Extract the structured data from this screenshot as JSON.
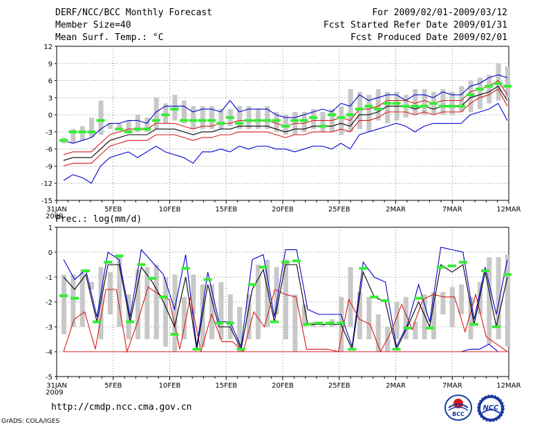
{
  "header": {
    "title": "DERF/NCC/BCC Monthly Forecast",
    "member_size": "Member Size=40",
    "variable": "Mean Surf. Temp.: °C",
    "period": "For 2009/02/01-2009/03/12",
    "fcst_started": "Fcst Started Refer Date 2009/01/31",
    "fcst_produced": "Fcst Produced Date 2009/02/01"
  },
  "footer": {
    "url": "http://cmdp.ncc.cma.gov.cn",
    "grads": "GrADS: COLA/IGES",
    "logo_left_text": "BCC",
    "logo_right_text": "NCC"
  },
  "colors": {
    "box": "#c8c8c8",
    "mean": "#000000",
    "inner": "#d81818",
    "outer": "#0000d0",
    "obs": "#33ee33",
    "grid": "#808080"
  },
  "chart_data": [
    {
      "type": "line",
      "title": "Mean Surf. Temp.: °C",
      "ylim": [
        -15,
        12
      ],
      "yticks": [
        "12",
        "9",
        "6",
        "3",
        "0",
        "-3",
        "-6",
        "-9",
        "-12",
        "-15"
      ],
      "xlabels": [
        "31JAN",
        "5FEB",
        "10FEB",
        "15FEB",
        "20FEB",
        "25FEB",
        "2MAR",
        "7MAR",
        "12MAR"
      ],
      "xlabel_year": "2009",
      "series": [
        {
          "name": "box_low",
          "values": [
            -5.0,
            -5.0,
            -4.5,
            -4.0,
            -3.5,
            -2.5,
            -2.5,
            -2.8,
            -3.0,
            -3.0,
            -2.5,
            -1.5,
            -1.0,
            -1.5,
            -2.5,
            -2.5,
            -2.5,
            -2.5,
            -2.0,
            -2.5,
            -2.5,
            -2.5,
            -2.5,
            -3.0,
            -3.5,
            -3.5,
            -3.0,
            -2.5,
            -3.0,
            -3.0,
            -3.5,
            -3.0,
            -2.5,
            -3.0,
            -1.0,
            -1.5,
            -1.0,
            -0.5,
            0.0,
            0.0,
            0.0,
            0.0,
            0.0,
            0.5,
            0.5,
            1.0,
            2.0,
            2.5,
            3.0
          ]
        },
        {
          "name": "box_high",
          "values": [
            -4.0,
            -2.5,
            -2.0,
            -0.5,
            2.5,
            -1.5,
            -1.5,
            -1.0,
            0.0,
            -0.5,
            3.0,
            2.0,
            3.5,
            2.5,
            1.5,
            1.5,
            1.5,
            1.0,
            1.0,
            1.5,
            1.5,
            1.0,
            1.5,
            0.5,
            0.0,
            0.5,
            0.5,
            1.0,
            0.5,
            1.0,
            1.5,
            4.5,
            4.0,
            3.5,
            4.5,
            4.0,
            4.0,
            3.5,
            4.5,
            4.5,
            4.0,
            4.5,
            4.0,
            5.0,
            6.0,
            6.5,
            7.0,
            9.0,
            8.5
          ]
        },
        {
          "name": "outer_low",
          "values": [
            -11.5,
            -10.5,
            -11.0,
            -12.0,
            -9.0,
            -7.5,
            -7.0,
            -6.5,
            -7.5,
            -6.5,
            -5.5,
            -6.5,
            -7.0,
            -7.5,
            -8.5,
            -6.5,
            -6.5,
            -6.0,
            -6.5,
            -5.5,
            -6.0,
            -5.5,
            -5.5,
            -6.0,
            -6.0,
            -6.5,
            -6.0,
            -5.5,
            -5.5,
            -6.0,
            -5.0,
            -6.0,
            -3.5,
            -3.0,
            -2.5,
            -2.0,
            -1.5,
            -2.0,
            -3.0,
            -2.0,
            -1.5,
            -1.5,
            -1.5,
            -1.5,
            0.0,
            0.5,
            1.0,
            2.0,
            -1.0
          ]
        },
        {
          "name": "inner_low",
          "values": [
            -9.0,
            -8.5,
            -8.5,
            -8.5,
            -7.0,
            -5.5,
            -5.0,
            -4.5,
            -4.5,
            -4.5,
            -3.5,
            -3.5,
            -3.5,
            -4.0,
            -4.5,
            -4.0,
            -4.0,
            -3.5,
            -3.5,
            -3.0,
            -3.0,
            -3.0,
            -3.0,
            -3.5,
            -4.0,
            -3.5,
            -3.5,
            -3.0,
            -3.0,
            -3.0,
            -2.5,
            -3.0,
            -1.0,
            -1.0,
            -0.5,
            0.5,
            0.5,
            0.5,
            0.0,
            0.5,
            0.0,
            0.5,
            0.5,
            0.5,
            2.0,
            3.0,
            3.5,
            4.5,
            1.5
          ]
        },
        {
          "name": "mean",
          "values": [
            -8.0,
            -7.5,
            -7.5,
            -7.5,
            -6.0,
            -4.5,
            -4.0,
            -3.5,
            -3.5,
            -3.5,
            -2.5,
            -2.5,
            -2.5,
            -3.0,
            -3.5,
            -3.0,
            -3.0,
            -2.5,
            -2.5,
            -2.0,
            -2.0,
            -2.0,
            -2.0,
            -2.5,
            -3.0,
            -2.5,
            -2.5,
            -2.0,
            -2.0,
            -2.0,
            -1.5,
            -2.0,
            0.0,
            0.0,
            0.5,
            1.5,
            1.5,
            1.5,
            1.0,
            1.5,
            1.0,
            1.5,
            1.5,
            1.5,
            3.0,
            3.5,
            4.0,
            5.0,
            2.5
          ]
        },
        {
          "name": "inner_high",
          "values": [
            -7.0,
            -6.5,
            -6.5,
            -6.5,
            -5.0,
            -3.5,
            -3.0,
            -2.5,
            -2.5,
            -2.5,
            -1.5,
            -1.5,
            -1.5,
            -2.0,
            -2.5,
            -2.0,
            -2.0,
            -1.5,
            -1.5,
            -1.0,
            -1.0,
            -1.0,
            -1.0,
            -1.5,
            -2.0,
            -1.5,
            -1.5,
            -1.0,
            -1.0,
            -1.0,
            -0.5,
            -1.0,
            1.0,
            1.0,
            1.5,
            2.5,
            2.5,
            2.5,
            2.0,
            2.5,
            2.0,
            2.5,
            2.5,
            2.5,
            4.0,
            4.5,
            5.0,
            6.0,
            3.5
          ]
        },
        {
          "name": "outer_high",
          "values": [
            -4.5,
            -5.0,
            -4.5,
            -4.0,
            -2.5,
            -1.5,
            -1.5,
            -1.0,
            -1.0,
            -1.5,
            0.5,
            1.5,
            1.5,
            1.5,
            0.5,
            1.0,
            1.0,
            0.5,
            2.5,
            0.5,
            1.0,
            1.0,
            1.0,
            0.0,
            -0.5,
            -0.5,
            0.0,
            0.5,
            1.0,
            0.5,
            2.0,
            1.5,
            3.5,
            2.5,
            3.0,
            3.5,
            3.5,
            2.5,
            3.5,
            3.5,
            3.0,
            4.0,
            3.5,
            3.5,
            5.0,
            5.5,
            6.5,
            7.0,
            6.5
          ]
        },
        {
          "name": "observed",
          "values": [
            -4.5,
            -3.0,
            -3.0,
            -3.0,
            -1.0,
            null,
            -2.5,
            -3.0,
            -2.5,
            -2.5,
            -1.0,
            0.0,
            1.0,
            -1.0,
            -1.0,
            -1.0,
            -1.0,
            -1.5,
            -0.5,
            -1.5,
            -1.0,
            -1.0,
            -1.0,
            -1.0,
            -2.0,
            -1.0,
            -1.0,
            -0.5,
            -2.0,
            0.0,
            -0.5,
            0.0,
            1.0,
            1.5,
            1.0,
            2.0,
            2.0,
            1.5,
            1.5,
            1.5,
            2.0,
            1.5,
            1.5,
            1.5,
            3.5,
            4.5,
            5.0,
            5.5,
            5.0
          ]
        }
      ]
    },
    {
      "type": "line",
      "title": "Prec.: log(mm/d)",
      "ylim": [
        -5,
        1
      ],
      "yticks": [
        "1",
        "0",
        "-1",
        "-2",
        "-3",
        "-4",
        "-5"
      ],
      "xlabels": [
        "31JAN",
        "5FEB",
        "10FEB",
        "15FEB",
        "20FEB",
        "25FEB",
        "2MAR",
        "7MAR",
        "12MAR"
      ],
      "xlabel_year": "2009",
      "series": [
        {
          "name": "box_low",
          "values": [
            -3.3,
            -3.0,
            -3.0,
            -1.5,
            -3.5,
            -2.5,
            -3.0,
            -3.5,
            -3.5,
            -3.5,
            -3.5,
            -3.8,
            -4.0,
            -3.5,
            -2.5,
            -3.8,
            -3.5,
            -3.5,
            -3.5,
            -4.0,
            -3.5,
            -3.5,
            -3.0,
            -2.5,
            -3.5,
            -4.0,
            -3.0,
            -3.0,
            -3.0,
            -3.0,
            -4.0,
            -3.0,
            -3.5,
            -3.5,
            -4.0,
            -4.0,
            -3.5,
            -3.5,
            -3.5,
            -3.5,
            -3.5,
            -2.5,
            -3.0,
            -2.5,
            -3.5,
            -2.5,
            -3.7,
            -3.5,
            -3.8
          ]
        },
        {
          "name": "box_high",
          "values": [
            -0.9,
            -0.9,
            -0.7,
            -1.2,
            -0.6,
            -0.8,
            -0.1,
            -1.7,
            -0.7,
            -0.6,
            -0.5,
            -1.0,
            -0.9,
            -1.8,
            -0.9,
            -1.3,
            -1.3,
            -1.2,
            -1.7,
            -2.2,
            -1.7,
            -0.5,
            -0.3,
            -0.6,
            -0.3,
            -1.7,
            -2.1,
            -2.8,
            -2.9,
            -2.7,
            -1.8,
            -0.6,
            -1.6,
            -1.8,
            -2.5,
            -3.0,
            -2.0,
            -1.8,
            -2.8,
            -1.7,
            -1.6,
            -1.6,
            -1.4,
            -1.3,
            -1.8,
            -1.2,
            -0.2,
            -0.2,
            -0.1
          ]
        },
        {
          "name": "outer_low",
          "values": [
            -4.0,
            -4.0,
            -4.0,
            -4.0,
            -4.0,
            -4.0,
            -4.0,
            -4.0,
            -4.0,
            -4.0,
            -4.0,
            -4.0,
            -4.0,
            -4.0,
            -4.0,
            -4.0,
            -4.0,
            -4.0,
            -4.0,
            -4.0,
            -4.0,
            -4.0,
            -4.0,
            -4.0,
            -4.0,
            -4.0,
            -4.0,
            -4.0,
            -4.0,
            -4.0,
            -4.0,
            -4.0,
            -4.0,
            -4.0,
            -4.0,
            -4.0,
            -4.0,
            -4.0,
            -4.0,
            -4.0,
            -4.0,
            -4.0,
            -4.0,
            -4.0,
            -3.9,
            -3.9,
            -3.7,
            -4.0,
            -4.0
          ]
        },
        {
          "name": "inner_low",
          "values": [
            -4.0,
            -4.0,
            -4.0,
            -4.0,
            -4.0,
            -4.0,
            -4.0,
            -4.0,
            -4.0,
            -4.0,
            -4.0,
            -4.0,
            -4.0,
            -4.0,
            -4.0,
            -4.0,
            -4.0,
            -4.0,
            -4.0,
            -4.0,
            -4.0,
            -4.0,
            -4.0,
            -4.0,
            -4.0,
            -4.0,
            -4.0,
            -4.0,
            -4.0,
            -4.0,
            -4.0,
            -4.0,
            -4.0,
            -4.0,
            -4.0,
            -4.0,
            -4.0,
            -4.0,
            -4.0,
            -4.0,
            -4.0,
            -4.0,
            -4.0,
            -4.0,
            -4.0,
            -4.0,
            -4.0,
            -4.0,
            -4.0
          ]
        },
        {
          "name": "inner_high",
          "values": [
            -4.0,
            -2.7,
            -2.4,
            -3.9,
            -1.5,
            -1.5,
            -4.0,
            -2.8,
            -1.4,
            -1.7,
            -1.9,
            -3.9,
            -1.8,
            -4.0,
            -2.5,
            -3.6,
            -3.6,
            -4.0,
            -2.4,
            -3.0,
            -1.5,
            -1.7,
            -1.8,
            -3.9,
            -3.9,
            -3.9,
            -4.0,
            -1.9,
            -2.7,
            -2.9,
            -4.0,
            -3.2,
            -2.1,
            -3.1,
            -1.9,
            -1.7,
            -1.8,
            -1.8,
            -3.2,
            -1.7,
            -3.4,
            -3.7,
            -4.0
          ]
        },
        {
          "name": "mean",
          "values": [
            -1.0,
            -1.5,
            -0.9,
            -2.8,
            -0.5,
            -0.5,
            -2.8,
            -0.6,
            -1.2,
            -2.0,
            -3.0,
            -1.0,
            -3.9,
            -1.3,
            -3.0,
            -3.0,
            -3.9,
            -1.5,
            -0.7,
            -2.8,
            -0.5,
            -0.5,
            -2.9,
            -2.9,
            -2.9,
            -2.9,
            -3.9,
            -0.8,
            -1.8,
            -2.0,
            -3.9,
            -3.0,
            -2.0,
            -3.0,
            -0.5,
            -0.8,
            -0.5,
            -2.9,
            -0.8,
            -3.0,
            -1.0
          ]
        },
        {
          "name": "outer_high",
          "values": [
            -0.3,
            -1.1,
            -0.7,
            -2.6,
            0.0,
            -0.3,
            -2.6,
            0.1,
            -0.4,
            -0.9,
            -2.3,
            -0.1,
            -3.8,
            -0.8,
            -2.8,
            -2.8,
            -3.8,
            -0.3,
            -0.1,
            -2.6,
            0.1,
            0.1,
            -2.3,
            -2.5,
            -2.5,
            -2.5,
            -3.8,
            -0.4,
            -1.0,
            -1.2,
            -3.8,
            -2.9,
            -1.3,
            -2.8,
            0.2,
            0.1,
            0.0,
            -2.7,
            -0.6,
            -2.5,
            -0.3
          ]
        },
        {
          "name": "observed",
          "values": [
            -1.75,
            -1.85,
            -0.75,
            -2.8,
            -0.4,
            -0.15,
            -2.8,
            -0.5,
            -1.05,
            -1.8,
            -3.3,
            -0.65,
            -3.9,
            -1.1,
            -2.85,
            -2.85,
            -3.9,
            -1.3,
            -0.6,
            -2.8,
            -0.4,
            -0.35,
            -2.9,
            -2.85,
            -2.85,
            -2.85,
            -3.9,
            -0.65,
            -1.8,
            -1.95,
            -3.9,
            -3.05,
            -1.85,
            -3.05,
            -0.6,
            -0.55,
            -0.4,
            -2.9,
            -0.75,
            -3.0,
            -0.9
          ]
        }
      ]
    }
  ]
}
